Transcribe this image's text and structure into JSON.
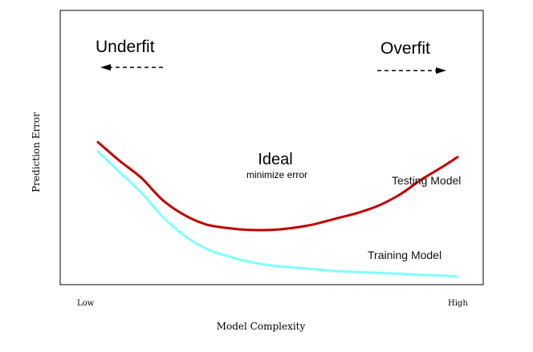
{
  "chart_data": {
    "type": "line",
    "title": "",
    "xlabel": "Model Complexity",
    "ylabel": "Prediction Error",
    "x_tick_labels": [
      "Low",
      "High"
    ],
    "xlim": [
      0,
      100
    ],
    "ylim": [
      0,
      100
    ],
    "grid": false,
    "legend": "none",
    "series": [
      {
        "name": "Testing Model",
        "color": "#c00000",
        "x": [
          0,
          6,
          12,
          18,
          24,
          30,
          36,
          42,
          48,
          54,
          60,
          66,
          72,
          78,
          84,
          90,
          96,
          100
        ],
        "y": [
          72,
          62,
          53,
          41,
          33,
          28,
          26,
          25,
          25,
          26,
          28,
          31,
          34,
          38,
          44,
          52,
          59,
          64
        ]
      },
      {
        "name": "Training Model",
        "color": "#80ffff",
        "x": [
          0,
          6,
          12,
          18,
          24,
          30,
          36,
          42,
          48,
          54,
          60,
          66,
          72,
          78,
          84,
          90,
          96,
          100
        ],
        "y": [
          67,
          56,
          45,
          32,
          22,
          15,
          11,
          8,
          6,
          5,
          4,
          3,
          2.5,
          2,
          1.5,
          1,
          0.5,
          0
        ]
      }
    ],
    "annotations": [
      {
        "key": "underfit",
        "text": "Underfit",
        "arrow": "left"
      },
      {
        "key": "overfit",
        "text": "Overfit",
        "arrow": "right"
      },
      {
        "key": "ideal",
        "text": "Ideal",
        "subtext": "minimize error"
      }
    ]
  }
}
